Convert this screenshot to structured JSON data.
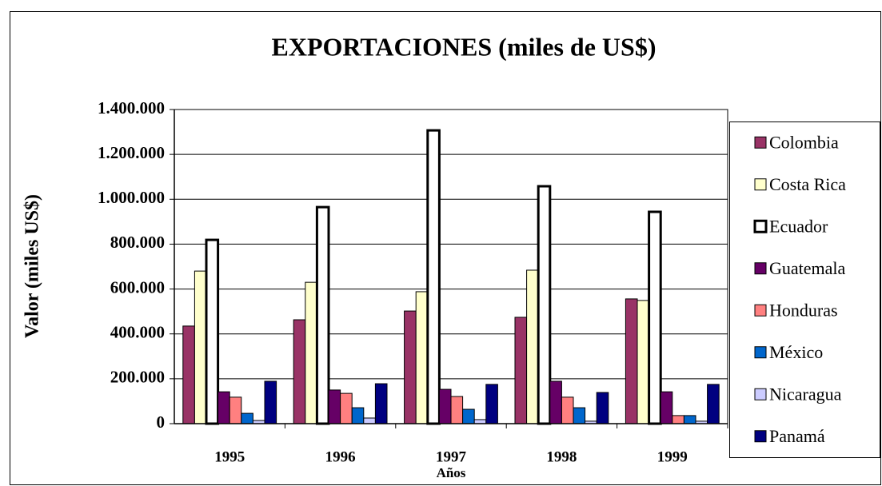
{
  "chart_data": {
    "type": "bar",
    "title": "EXPORTACIONES (miles de US$)",
    "x_label": "Años",
    "y_label": "Valor (miles US$)",
    "categories": [
      "1995",
      "1996",
      "1997",
      "1998",
      "1999"
    ],
    "series": [
      {
        "name": "Colombia",
        "color": "#993366",
        "values": [
          435000,
          463000,
          502000,
          474000,
          556000
        ]
      },
      {
        "name": "Costa Rica",
        "color": "#ffffcc",
        "values": [
          680000,
          630000,
          588000,
          684000,
          549000
        ]
      },
      {
        "name": "Ecuador",
        "color": "#ffffff",
        "values": [
          819000,
          965000,
          1307000,
          1058000,
          944000
        ]
      },
      {
        "name": "Guatemala",
        "color": "#660066",
        "values": [
          142000,
          150000,
          153000,
          189000,
          142000
        ]
      },
      {
        "name": "Honduras",
        "color": "#ff8080",
        "values": [
          118000,
          135000,
          121000,
          118000,
          36000
        ]
      },
      {
        "name": "México",
        "color": "#0066cc",
        "values": [
          46000,
          71000,
          64000,
          71000,
          36000
        ]
      },
      {
        "name": "Nicaragua",
        "color": "#ccccff",
        "values": [
          14000,
          25000,
          18000,
          11000,
          11000
        ]
      },
      {
        "name": "Panamá",
        "color": "#000080",
        "values": [
          189000,
          178000,
          175000,
          139000,
          175000
        ]
      }
    ],
    "ylim": [
      0,
      1400000
    ],
    "yticks": [
      0,
      {
        "value": 200000,
        "label": "200.000"
      },
      {
        "value": 400000,
        "label": "400.000"
      },
      {
        "value": 600000,
        "label": "600.000"
      },
      {
        "value": 800000,
        "label": "800.000"
      },
      {
        "value": 1000000,
        "label": "1.000.000"
      },
      {
        "value": 1200000,
        "label": "1.200.000"
      },
      {
        "value": 1400000,
        "label": "1.400.000"
      }
    ],
    "grid": true,
    "legend": "right"
  }
}
